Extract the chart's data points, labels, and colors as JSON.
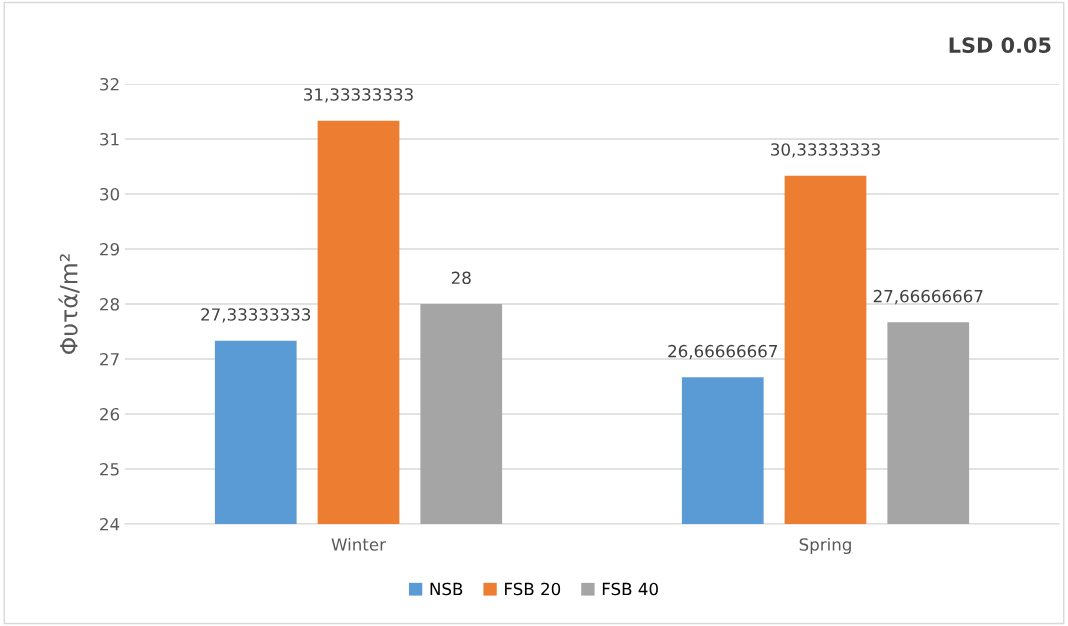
{
  "chart_data": {
    "type": "bar",
    "ylabel": "Φυτά/m²",
    "categories": [
      "Winter",
      "Spring"
    ],
    "series": [
      {
        "name": "NSB",
        "color": "#5b9bd5",
        "values": [
          27.33333333,
          26.66666667
        ],
        "value_labels": [
          "27,33333333",
          "26,66666667"
        ]
      },
      {
        "name": "FSB 20",
        "color": "#ed7d31",
        "values": [
          31.33333333,
          30.33333333
        ],
        "value_labels": [
          "31,33333333",
          "30,33333333"
        ]
      },
      {
        "name": "FSB 40",
        "color": "#a5a5a5",
        "values": [
          28,
          27.66666667
        ],
        "value_labels": [
          "28",
          "27,66666667"
        ]
      }
    ],
    "ylim": [
      24,
      32
    ],
    "yticks": [
      24,
      25,
      26,
      27,
      28,
      29,
      30,
      31,
      32
    ],
    "grid": "y",
    "legend": "bottom",
    "annotations": [
      "LSD 0.05"
    ]
  }
}
